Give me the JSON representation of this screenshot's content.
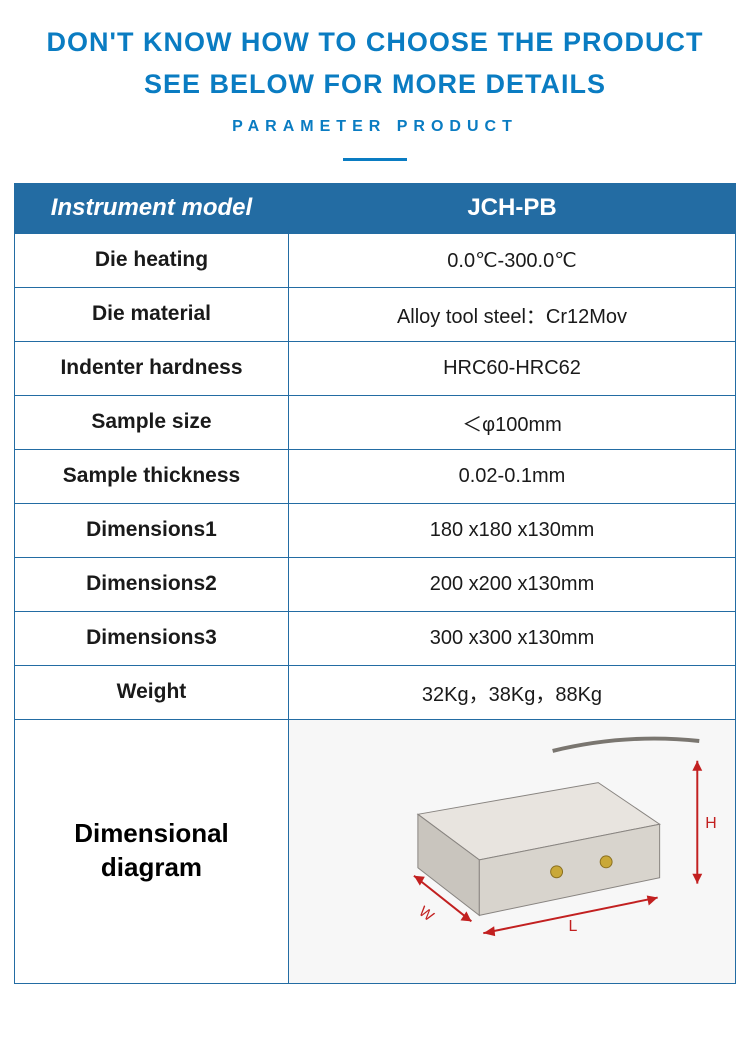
{
  "header": {
    "title_line1": "DON'T KNOW HOW TO CHOOSE THE PRODUCT",
    "title_line2": "SEE BELOW FOR MORE DETAILS",
    "subtitle": "PARAMETER PRODUCT",
    "title_color": "#0a7cc2",
    "subtitle_color": "#0a7cc2",
    "divider_color": "#0a7cc2"
  },
  "table": {
    "header_bg": "#236ca3",
    "border_color": "#236ca3",
    "text_color": "#1a1a1a",
    "header_label": "Instrument model",
    "header_value": "JCH-PB",
    "rows": [
      {
        "label": "Die heating",
        "value": "0.0℃-300.0℃"
      },
      {
        "label": "Die material",
        "value": "Alloy tool steel：Cr12Mov"
      },
      {
        "label": "Indenter hardness",
        "value": "HRC60-HRC62"
      },
      {
        "label": "Sample size",
        "value": "＜φ100mm"
      },
      {
        "label": "Sample thickness",
        "value": "0.02-0.1mm"
      },
      {
        "label": "Dimensions1",
        "value": "180 x180 x130mm"
      },
      {
        "label": "Dimensions2",
        "value": "200 x200 x130mm"
      },
      {
        "label": "Dimensions3",
        "value": "300 x300 x130mm"
      },
      {
        "label": "Weight",
        "value": "32Kg，38Kg，88Kg"
      }
    ],
    "diagram_label": "Dimensional\ndiagram"
  },
  "diagram": {
    "block_fill_top": "#e8e4df",
    "block_fill_front": "#d8d4cd",
    "block_fill_side": "#c9c5be",
    "block_stroke": "#888480",
    "arrow_color": "#c22020",
    "bolt_color": "#c9a838",
    "wire_color": "#7a7670",
    "label_L": "L",
    "label_W": "W",
    "label_H": "H"
  }
}
